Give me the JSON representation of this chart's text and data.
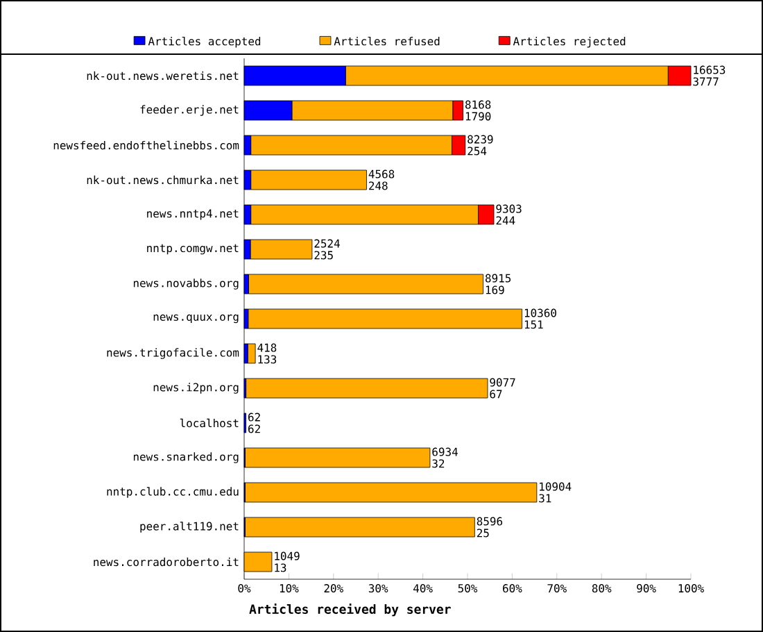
{
  "chart_data": {
    "type": "bar",
    "orientation": "horizontal",
    "stacked": true,
    "xlabel": "Articles received by server",
    "categories": [
      "nk-out.news.weretis.net",
      "feeder.erje.net",
      "newsfeed.endofthelinebbs.com",
      "nk-out.news.chmurka.net",
      "news.nntp4.net",
      "nntp.comgw.net",
      "news.novabbs.org",
      "news.quux.org",
      "news.trigofacile.com",
      "news.i2pn.org",
      "localhost",
      "news.snarked.org",
      "nntp.club.cc.cmu.edu",
      "peer.alt119.net",
      "news.corradoroberto.it"
    ],
    "series": [
      {
        "name": "Articles accepted",
        "color": "#0000ff",
        "values": [
          22.7,
          10.7,
          1.5,
          1.5,
          1.5,
          1.4,
          1.0,
          0.9,
          0.8,
          0.4,
          0.4,
          0.2,
          0.2,
          0.2,
          null
        ]
      },
      {
        "name": "Articles refused",
        "color": "#ffaa00",
        "values": [
          72.2,
          36.0,
          45.0,
          25.9,
          50.9,
          13.8,
          52.5,
          61.3,
          1.7,
          54.1,
          0,
          41.4,
          65.3,
          51.4,
          6.2
        ]
      },
      {
        "name": "Articles rejected",
        "color": "#ff0000",
        "values": [
          5.1,
          2.3,
          3.0,
          0,
          3.5,
          0,
          0,
          0,
          0,
          0,
          0,
          0,
          0,
          0,
          0
        ]
      }
    ],
    "annotations": [
      "16653",
      "3777",
      "8168",
      "1790",
      "8239",
      "254",
      "4568",
      "248",
      "9303",
      "244",
      "2524",
      "235",
      "8915",
      "169",
      "10360",
      "151",
      "418",
      "133",
      "9077",
      "67",
      "62",
      "62",
      "6934",
      "32",
      "10904",
      "31",
      "8596",
      "25",
      "1049",
      "13"
    ],
    "xlim": [
      0,
      100
    ],
    "xticks": [
      {
        "value": 0,
        "label": "0%"
      },
      {
        "value": 10,
        "label": "10%"
      },
      {
        "value": 20,
        "label": "20%"
      },
      {
        "value": 30,
        "label": "30%"
      },
      {
        "value": 40,
        "label": "40%"
      },
      {
        "value": 50,
        "label": "50%"
      },
      {
        "value": 60,
        "label": "60%"
      },
      {
        "value": 70,
        "label": "70%"
      },
      {
        "value": 80,
        "label": "80%"
      },
      {
        "value": 90,
        "label": "90%"
      },
      {
        "value": 100,
        "label": "100%"
      }
    ],
    "legend": "top"
  }
}
